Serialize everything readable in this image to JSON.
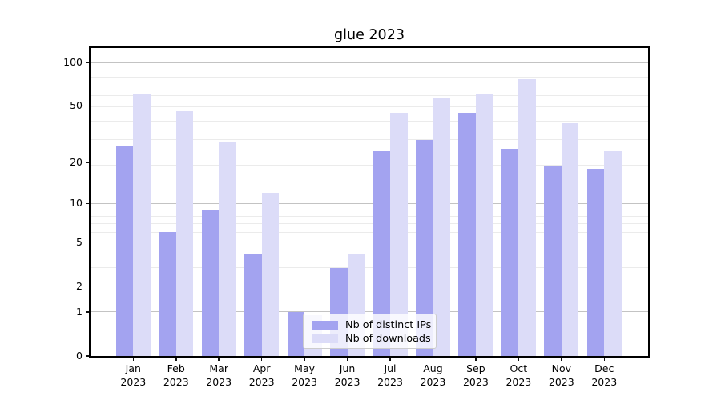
{
  "title": "glue 2023",
  "legend": {
    "items": [
      {
        "label": "Nb of distinct IPs",
        "color": "#a3a3f0"
      },
      {
        "label": "Nb of downloads",
        "color": "#dcdcf8"
      }
    ]
  },
  "axes": {
    "y_tick_labels": [
      "0",
      "1",
      "2",
      "5",
      "10",
      "20",
      "50",
      "100"
    ],
    "x_months": [
      "Jan",
      "Feb",
      "Mar",
      "Apr",
      "May",
      "Jun",
      "Jul",
      "Aug",
      "Sep",
      "Oct",
      "Nov",
      "Dec"
    ],
    "year": "2023"
  },
  "chart_data": {
    "type": "bar",
    "title": "glue 2023",
    "categories": [
      "Jan 2023",
      "Feb 2023",
      "Mar 2023",
      "Apr 2023",
      "May 2023",
      "Jun 2023",
      "Jul 2023",
      "Aug 2023",
      "Sep 2023",
      "Oct 2023",
      "Nov 2023",
      "Dec 2023"
    ],
    "series": [
      {
        "name": "Nb of distinct IPs",
        "color": "#a3a3f0",
        "values": [
          26,
          6,
          9,
          4,
          1,
          3,
          24,
          29,
          45,
          25,
          19,
          18
        ]
      },
      {
        "name": "Nb of downloads",
        "color": "#dcdcf8",
        "values": [
          61,
          46,
          28,
          12,
          0.9,
          4,
          45,
          56,
          61,
          77,
          38,
          24
        ]
      }
    ],
    "yscale": "log1p",
    "ylim": [
      0,
      126
    ],
    "yticks": [
      0,
      1,
      2,
      5,
      10,
      20,
      50,
      100
    ],
    "grid": "horizontal log major+minor",
    "legend_position": "inside lower center-left"
  }
}
